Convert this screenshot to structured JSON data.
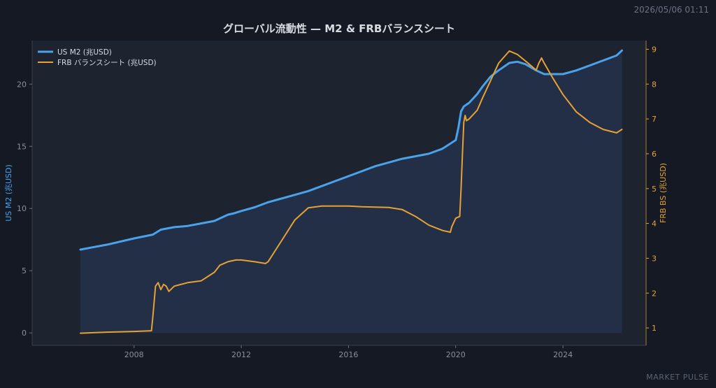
{
  "header": {
    "timestamp": "2026/05/06 01:11"
  },
  "footer": {
    "watermark": "MARKET PULSE"
  },
  "colors": {
    "background": "#141923",
    "plot_background": "#1e2330",
    "m2": "#4aa3ea",
    "frb": "#e6a232",
    "m2_fill": "#23304a",
    "text": "#d8dbe0",
    "tick": "#8a909c"
  },
  "chart_data": {
    "type": "line",
    "title": "グローバル流動性 — M2 & FRBバランスシート",
    "xlabel": "",
    "ylabel_left": "US M2 (兆USD)",
    "ylabel_right": "FRB BS (兆USD)",
    "xlim": [
      2004.2,
      2027.1
    ],
    "ylim_left": [
      -1.0,
      23.5
    ],
    "ylim_right": [
      0.5,
      9.25
    ],
    "x_ticks": [
      "2008",
      "2012",
      "2016",
      "2020",
      "2024"
    ],
    "y_ticks_left": [
      "0",
      "5",
      "10",
      "15",
      "20"
    ],
    "y_ticks_right": [
      "1",
      "2",
      "3",
      "4",
      "5",
      "6",
      "7",
      "8",
      "9"
    ],
    "grid": false,
    "legend_position": "top-left",
    "series": [
      {
        "name": "US M2 (兆USD)",
        "axis": "left",
        "fill": true,
        "x": [
          2006.0,
          2007.0,
          2008.0,
          2008.7,
          2009.0,
          2009.5,
          2010.0,
          2010.5,
          2011.0,
          2011.5,
          2011.7,
          2012.0,
          2012.5,
          2013.0,
          2013.5,
          2014.0,
          2014.5,
          2015.0,
          2015.5,
          2016.0,
          2016.5,
          2017.0,
          2017.5,
          2018.0,
          2018.5,
          2019.0,
          2019.5,
          2020.0,
          2020.1,
          2020.2,
          2020.3,
          2020.5,
          2020.8,
          2021.0,
          2021.3,
          2021.6,
          2022.0,
          2022.3,
          2022.6,
          2023.0,
          2023.3,
          2023.6,
          2024.0,
          2024.5,
          2025.0,
          2025.5,
          2026.0,
          2026.2
        ],
        "y": [
          6.7,
          7.1,
          7.6,
          7.9,
          8.3,
          8.5,
          8.6,
          8.8,
          9.0,
          9.5,
          9.6,
          9.8,
          10.1,
          10.5,
          10.8,
          11.1,
          11.4,
          11.8,
          12.2,
          12.6,
          13.0,
          13.4,
          13.7,
          14.0,
          14.2,
          14.4,
          14.8,
          15.5,
          16.5,
          17.8,
          18.2,
          18.5,
          19.2,
          19.8,
          20.6,
          21.1,
          21.7,
          21.8,
          21.6,
          21.1,
          20.8,
          20.8,
          20.8,
          21.1,
          21.5,
          21.9,
          22.3,
          22.7
        ]
      },
      {
        "name": "FRB バランスシート (兆USD)",
        "axis": "right",
        "fill": false,
        "x": [
          2006.0,
          2007.0,
          2008.0,
          2008.65,
          2008.7,
          2008.8,
          2008.9,
          2009.0,
          2009.1,
          2009.2,
          2009.3,
          2009.5,
          2010.0,
          2010.5,
          2011.0,
          2011.2,
          2011.5,
          2011.8,
          2012.0,
          2012.5,
          2012.9,
          2013.0,
          2013.5,
          2014.0,
          2014.5,
          2015.0,
          2015.5,
          2016.0,
          2016.5,
          2017.0,
          2017.5,
          2018.0,
          2018.5,
          2019.0,
          2019.5,
          2019.8,
          2019.85,
          2020.0,
          2020.15,
          2020.2,
          2020.25,
          2020.3,
          2020.35,
          2020.4,
          2020.5,
          2020.8,
          2021.0,
          2021.3,
          2021.6,
          2022.0,
          2022.3,
          2022.7,
          2023.0,
          2023.1,
          2023.2,
          2023.3,
          2023.6,
          2024.0,
          2024.5,
          2025.0,
          2025.5,
          2026.0,
          2026.2
        ],
        "y": [
          0.85,
          0.88,
          0.9,
          0.92,
          1.3,
          2.2,
          2.3,
          2.1,
          2.25,
          2.2,
          2.05,
          2.2,
          2.3,
          2.35,
          2.6,
          2.8,
          2.9,
          2.95,
          2.95,
          2.9,
          2.85,
          2.9,
          3.5,
          4.1,
          4.45,
          4.5,
          4.5,
          4.5,
          4.48,
          4.47,
          4.46,
          4.4,
          4.2,
          3.95,
          3.8,
          3.75,
          3.9,
          4.15,
          4.2,
          5.0,
          6.0,
          6.9,
          7.1,
          6.95,
          7.0,
          7.25,
          7.6,
          8.1,
          8.6,
          8.95,
          8.85,
          8.6,
          8.4,
          8.6,
          8.75,
          8.6,
          8.2,
          7.7,
          7.2,
          6.9,
          6.7,
          6.6,
          6.7
        ]
      }
    ]
  }
}
